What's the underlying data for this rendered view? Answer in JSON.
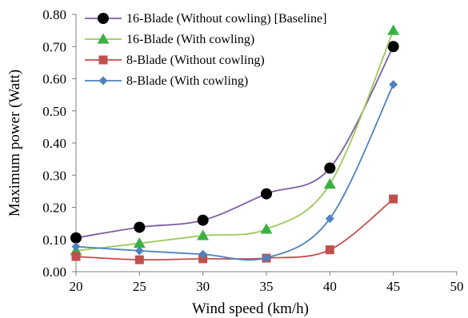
{
  "chart_data": {
    "type": "line",
    "xlabel": "Wind speed (km/h)",
    "ylabel": "Maximum power (Watt)",
    "xlim": [
      20,
      50
    ],
    "ylim": [
      0,
      0.8
    ],
    "x_ticks": [
      "20",
      "25",
      "30",
      "35",
      "40",
      "45",
      "50"
    ],
    "y_ticks": [
      "0.00",
      "0.10",
      "0.20",
      "0.30",
      "0.40",
      "0.50",
      "0.60",
      "0.70",
      "0.80"
    ],
    "grid": false,
    "legend_position": "top-left",
    "series": [
      {
        "name": "16-Blade (Without cowling) [Baseline]",
        "marker": "circle",
        "line_color": "#7b5fa3",
        "marker_color": "#000000",
        "x": [
          20,
          25,
          30,
          35,
          40,
          45
        ],
        "y": [
          0.105,
          0.138,
          0.16,
          0.242,
          0.322,
          0.7
        ]
      },
      {
        "name": "16-Blade (With cowling)",
        "marker": "triangle",
        "line_color": "#9cc95a",
        "marker_color": "#3cb043",
        "x": [
          20,
          25,
          30,
          35,
          40,
          45
        ],
        "y": [
          0.065,
          0.088,
          0.112,
          0.132,
          0.272,
          0.75
        ]
      },
      {
        "name": "8-Blade (Without cowling)",
        "marker": "square",
        "line_color": "#c0504d",
        "marker_color": "#c0504d",
        "x": [
          20,
          25,
          30,
          35,
          40,
          45
        ],
        "y": [
          0.047,
          0.037,
          0.04,
          0.042,
          0.068,
          0.226
        ]
      },
      {
        "name": "8-Blade (With cowling)",
        "marker": "diamond",
        "line_color": "#4f81bd",
        "marker_color": "#4f81bd",
        "x": [
          20,
          25,
          30,
          35,
          40,
          45
        ],
        "y": [
          0.078,
          0.065,
          0.054,
          0.043,
          0.165,
          0.582
        ]
      }
    ]
  }
}
